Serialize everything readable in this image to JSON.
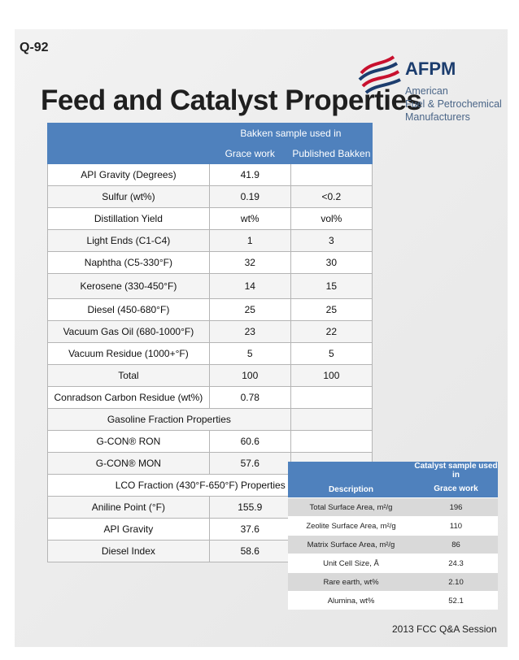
{
  "slide_number": "Q-92",
  "title": "Feed and Catalyst Properties",
  "logo": {
    "name": "AFPM",
    "sub_lines": [
      "American",
      "Fuel & Petrochemical",
      "Manufacturers"
    ],
    "colors": {
      "red": "#c8102e",
      "blue": "#1c3d6e"
    }
  },
  "main_table": {
    "header_top": "Bakken sample used in",
    "col1": "Grace work",
    "col2": "Published Bakken",
    "rows": [
      {
        "label": "API Gravity (Degrees)",
        "v1": "41.9",
        "v2": ""
      },
      {
        "label": "Sulfur (wt%)",
        "v1": "0.19",
        "v2": "<0.2"
      },
      {
        "label": "Distillation Yield",
        "v1": "wt%",
        "v2": "vol%"
      },
      {
        "label": "Light Ends (C1-C4)",
        "v1": "1",
        "v2": "3"
      },
      {
        "label": "Naphtha (C5-330°F)",
        "v1": "32",
        "v2": "30"
      },
      {
        "label": "Kerosene (330-450°F)",
        "v1": "14",
        "v2": "15"
      },
      {
        "label": "Diesel (450-680°F)",
        "v1": "25",
        "v2": "25"
      },
      {
        "label": "Vacuum Gas Oil (680-1000°F)",
        "v1": "23",
        "v2": "22"
      },
      {
        "label": "Vacuum Residue (1000+°F)",
        "v1": "5",
        "v2": "5"
      },
      {
        "label": "Total",
        "v1": "100",
        "v2": "100"
      },
      {
        "label": "Conradson Carbon Residue (wt%)",
        "v1": "0.78",
        "v2": ""
      }
    ],
    "gasoline_header": "Gasoline Fraction Properties",
    "gasoline_rows": [
      {
        "label": "G-CON® RON",
        "v1": "60.6",
        "v2": ""
      },
      {
        "label": "G-CON® MON",
        "v1": "57.6",
        "v2": ""
      }
    ],
    "lco_header": "LCO Fraction (430°F-650°F) Properties",
    "lco_rows": [
      {
        "label": "Aniline Point (°F)",
        "v1": "155.9"
      },
      {
        "label": "API Gravity",
        "v1": "37.6"
      },
      {
        "label": "Diesel Index",
        "v1": "58.6"
      }
    ]
  },
  "catalyst_table": {
    "col0": "Description",
    "col1_top": "Catalyst sample used in",
    "col1_bottom": "Grace work",
    "rows": [
      {
        "desc": "Total Surface Area, m²/g",
        "val": "196"
      },
      {
        "desc": "Zeolite Surface Area, m²/g",
        "val": "110"
      },
      {
        "desc": "Matrix Surface Area, m²/g",
        "val": "86"
      },
      {
        "desc": "Unit Cell Size, Å",
        "val": "24.3"
      },
      {
        "desc": "Rare earth, wt%",
        "val": "2.10"
      },
      {
        "desc": "Alumina, wt%",
        "val": "52.1"
      }
    ]
  },
  "footer": "2013 FCC Q&A Session"
}
